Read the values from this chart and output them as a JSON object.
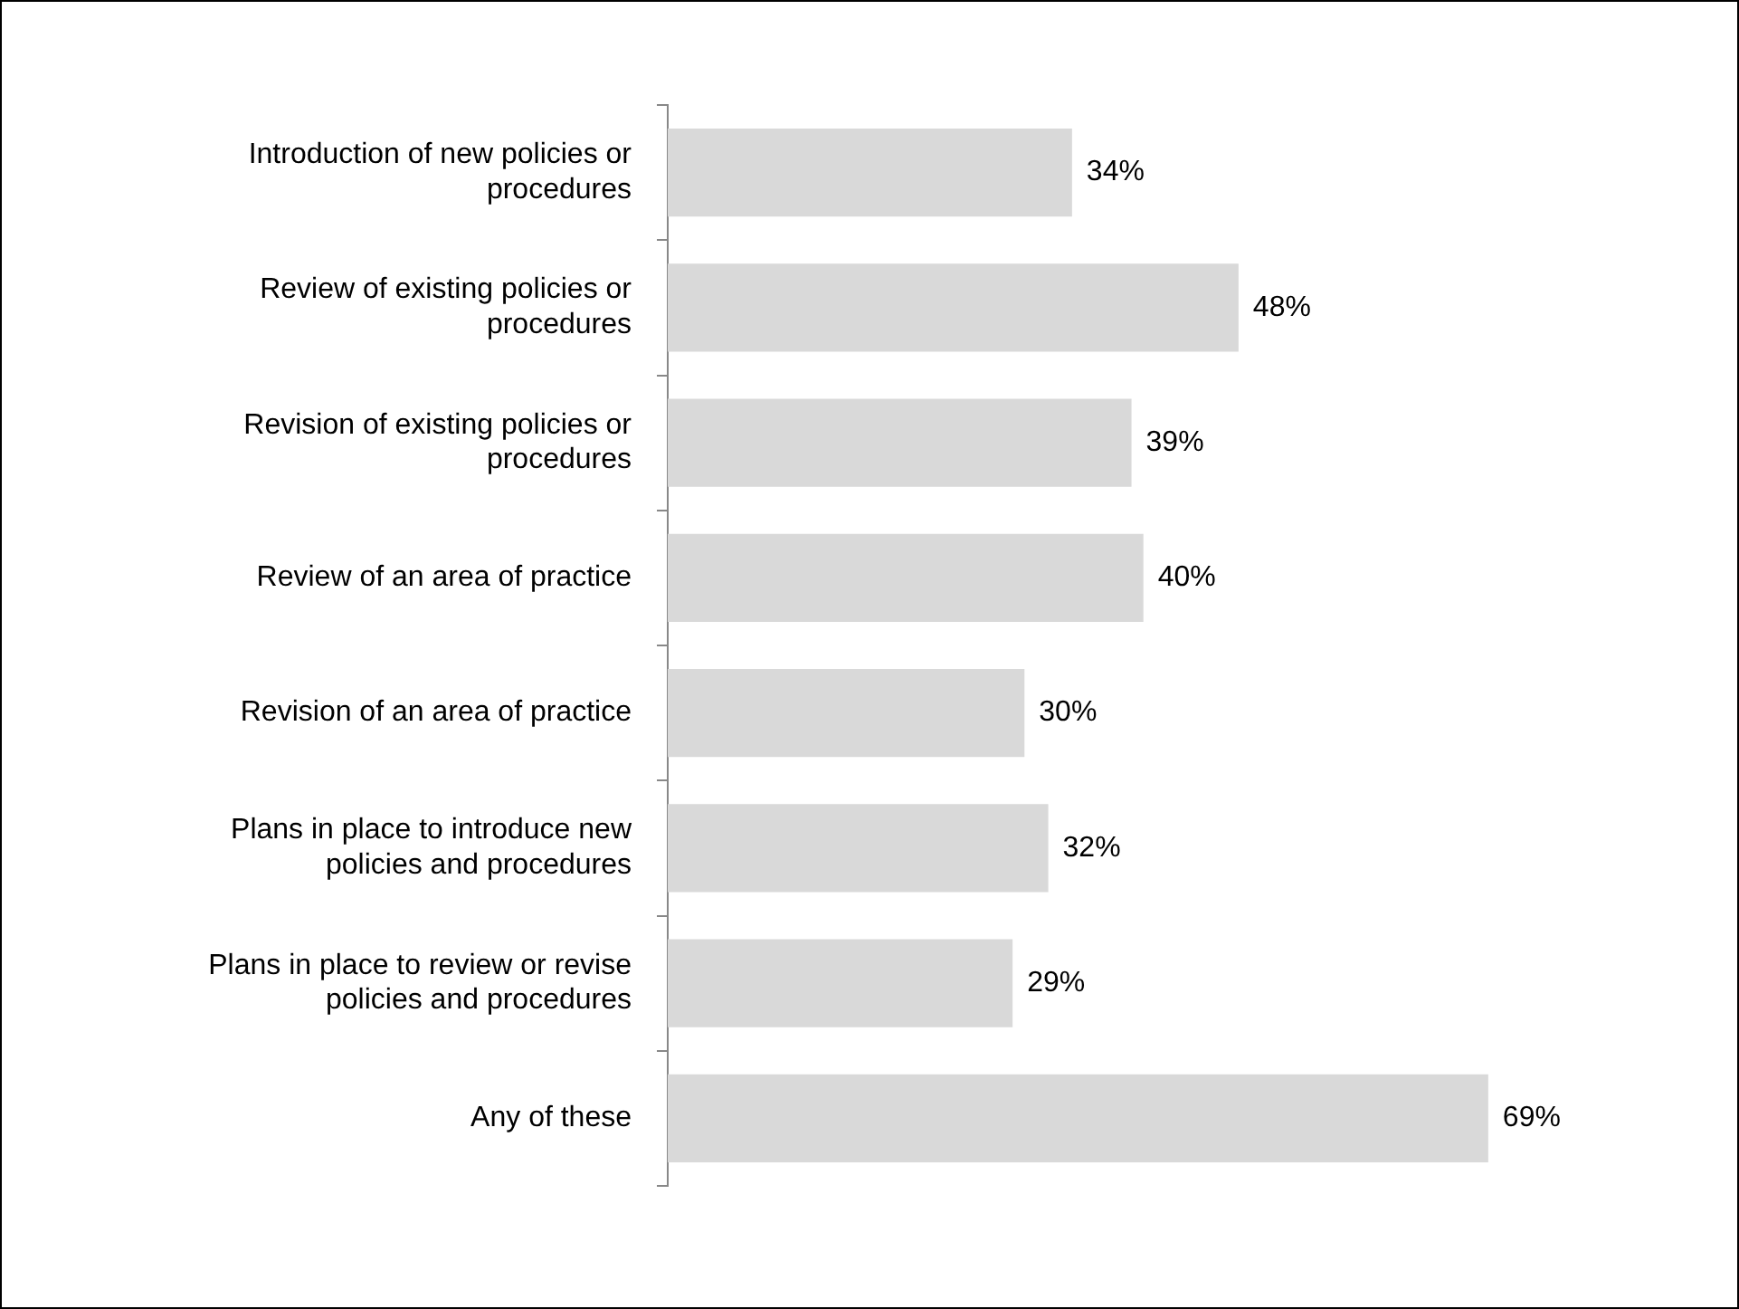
{
  "chart_data": {
    "type": "bar",
    "orientation": "horizontal",
    "categories": [
      "Introduction of new policies or procedures",
      "Review of existing policies or procedures",
      "Revision of existing policies or procedures",
      "Review of an area of practice",
      "Revision of an area of practice",
      "Plans in place to introduce new policies and procedures",
      "Plans in place to review or revise policies and procedures",
      "Any of these"
    ],
    "values": [
      34,
      48,
      39,
      40,
      30,
      32,
      29,
      69
    ],
    "value_labels": [
      "34%",
      "48%",
      "39%",
      "40%",
      "30%",
      "32%",
      "29%",
      "69%"
    ],
    "color": "#d9d9d9",
    "grid": false,
    "legend": false
  }
}
